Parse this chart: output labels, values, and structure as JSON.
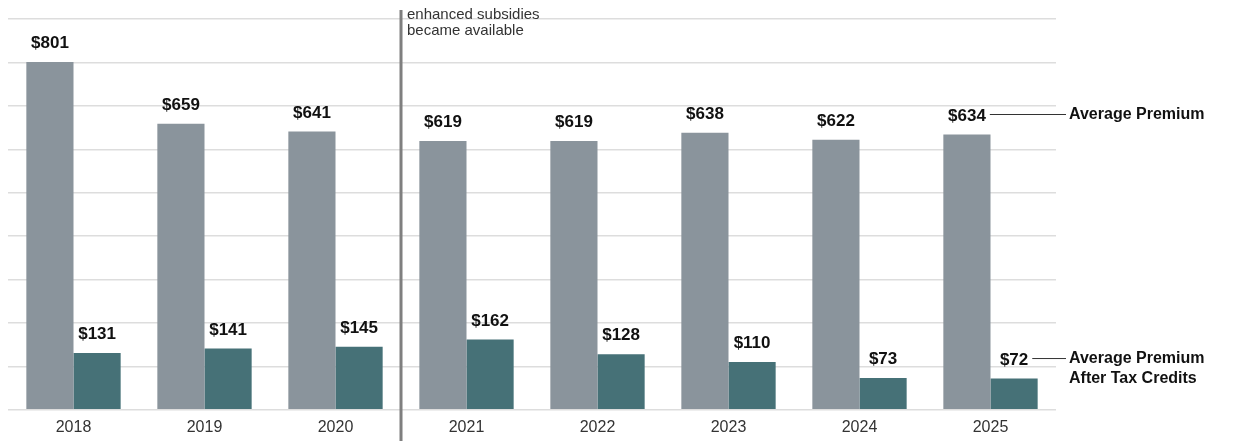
{
  "chart_data": {
    "type": "bar",
    "categories": [
      "2018",
      "2019",
      "2020",
      "2021",
      "2022",
      "2023",
      "2024",
      "2025"
    ],
    "series": [
      {
        "name": "Average Premium",
        "color": "#8a949c",
        "values": [
          801,
          659,
          641,
          619,
          619,
          638,
          622,
          634
        ],
        "value_labels": [
          "$801",
          "$659",
          "$641",
          "$619",
          "$619",
          "$638",
          "$622",
          "$634"
        ]
      },
      {
        "name": "Average Premium After Tax Credits",
        "color": "#467177",
        "values": [
          131,
          141,
          145,
          162,
          128,
          110,
          73,
          72
        ],
        "value_labels": [
          "$131",
          "$141",
          "$145",
          "$162",
          "$128",
          "$110",
          "$73",
          "$72"
        ]
      }
    ],
    "ylim": [
      0,
      900
    ],
    "yticks": [
      {
        "value": 0,
        "label": null
      },
      {
        "value": 100,
        "label": null
      },
      {
        "value": 200,
        "label": null
      },
      {
        "value": 300,
        "label": null
      },
      {
        "value": 400,
        "label": null
      },
      {
        "value": 500,
        "label": null
      },
      {
        "value": 600,
        "label": null
      },
      {
        "value": 700,
        "label": null
      },
      {
        "value": 800,
        "label": null
      },
      {
        "value": 900,
        "label": null
      }
    ],
    "tick_labels": "x",
    "grid": "y",
    "legend": false,
    "ref_lines": [
      {
        "axis": "x",
        "value": "2021",
        "label": "enhanced subsidies\nbecame available",
        "color": "#7f7f7f"
      }
    ]
  }
}
